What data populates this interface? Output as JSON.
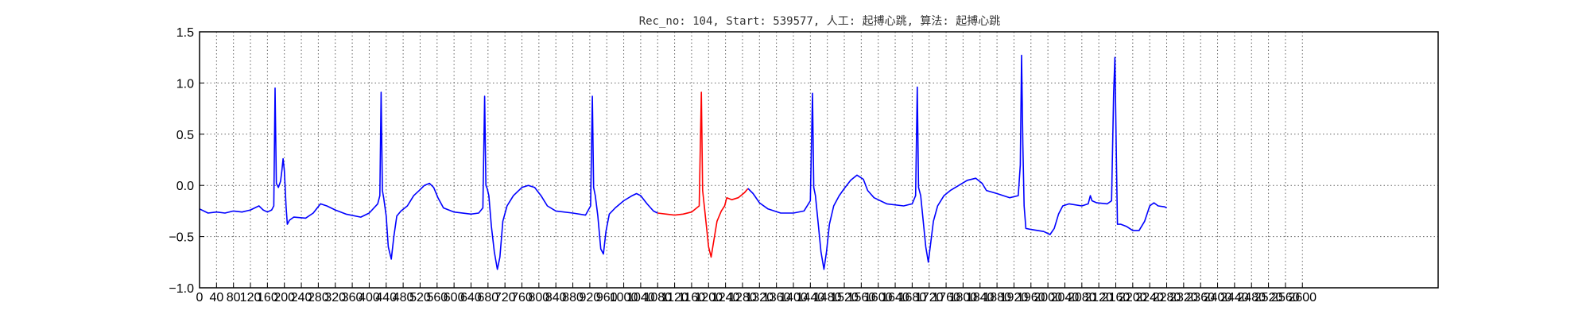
{
  "chart_data": {
    "type": "line",
    "title": "Rec_no: 104, Start: 539577, 人工: 起搏心跳, 算法: 起搏心跳",
    "xlabel": "",
    "ylabel": "",
    "xlim": [
      0,
      2920
    ],
    "ylim": [
      -1.0,
      1.5
    ],
    "yticks": [
      {
        "value": 1.5,
        "label": "1.5"
      },
      {
        "value": 1.0,
        "label": "1.0"
      },
      {
        "value": 0.5,
        "label": "0.5"
      },
      {
        "value": 0.0,
        "label": "0.0"
      },
      {
        "value": -0.5,
        "label": "−0.5"
      },
      {
        "value": -1.0,
        "label": "−1.0"
      }
    ],
    "xtick_step": 40,
    "xtick_max": 2600,
    "grid": true,
    "series": [
      {
        "color": "#0000ff",
        "points": [
          [
            0,
            -0.23
          ],
          [
            20,
            -0.27
          ],
          [
            40,
            -0.26
          ],
          [
            60,
            -0.27
          ],
          [
            80,
            -0.25
          ],
          [
            100,
            -0.26
          ],
          [
            120,
            -0.24
          ],
          [
            140,
            -0.2
          ],
          [
            150,
            -0.24
          ],
          [
            160,
            -0.26
          ],
          [
            170,
            -0.24
          ],
          [
            175,
            -0.2
          ],
          [
            178,
            0.95
          ],
          [
            181,
            0.02
          ],
          [
            186,
            -0.02
          ],
          [
            191,
            0.04
          ],
          [
            194,
            0.14
          ],
          [
            197,
            0.26
          ],
          [
            200,
            0.14
          ],
          [
            204,
            -0.2
          ],
          [
            207,
            -0.38
          ],
          [
            212,
            -0.34
          ],
          [
            222,
            -0.31
          ],
          [
            250,
            -0.32
          ],
          [
            268,
            -0.27
          ],
          [
            285,
            -0.18
          ],
          [
            300,
            -0.2
          ],
          [
            320,
            -0.24
          ],
          [
            345,
            -0.28
          ],
          [
            380,
            -0.31
          ],
          [
            400,
            -0.27
          ],
          [
            420,
            -0.18
          ],
          [
            425,
            -0.1
          ],
          [
            428,
            0.91
          ],
          [
            431,
            -0.05
          ],
          [
            434,
            -0.12
          ],
          [
            440,
            -0.3
          ],
          [
            445,
            -0.6
          ],
          [
            452,
            -0.72
          ],
          [
            458,
            -0.5
          ],
          [
            465,
            -0.3
          ],
          [
            475,
            -0.25
          ],
          [
            490,
            -0.2
          ],
          [
            505,
            -0.1
          ],
          [
            518,
            -0.05
          ],
          [
            530,
            0.0
          ],
          [
            542,
            0.02
          ],
          [
            552,
            -0.02
          ],
          [
            562,
            -0.12
          ],
          [
            575,
            -0.22
          ],
          [
            600,
            -0.26
          ],
          [
            640,
            -0.28
          ],
          [
            658,
            -0.27
          ],
          [
            668,
            -0.22
          ],
          [
            672,
            0.87
          ],
          [
            675,
            0.0
          ],
          [
            678,
            -0.03
          ],
          [
            682,
            -0.1
          ],
          [
            688,
            -0.4
          ],
          [
            695,
            -0.65
          ],
          [
            702,
            -0.82
          ],
          [
            708,
            -0.7
          ],
          [
            715,
            -0.35
          ],
          [
            725,
            -0.2
          ],
          [
            740,
            -0.1
          ],
          [
            760,
            -0.02
          ],
          [
            775,
            0.0
          ],
          [
            790,
            -0.02
          ],
          [
            805,
            -0.1
          ],
          [
            820,
            -0.2
          ],
          [
            840,
            -0.25
          ],
          [
            880,
            -0.27
          ],
          [
            910,
            -0.29
          ],
          [
            922,
            -0.2
          ],
          [
            926,
            0.87
          ],
          [
            929,
            -0.02
          ],
          [
            933,
            -0.1
          ],
          [
            939,
            -0.3
          ],
          [
            946,
            -0.62
          ],
          [
            952,
            -0.67
          ],
          [
            958,
            -0.45
          ],
          [
            966,
            -0.28
          ],
          [
            980,
            -0.22
          ],
          [
            1000,
            -0.15
          ],
          [
            1020,
            -0.1
          ],
          [
            1030,
            -0.08
          ],
          [
            1040,
            -0.1
          ],
          [
            1055,
            -0.18
          ],
          [
            1070,
            -0.25
          ],
          [
            1080,
            -0.27
          ]
        ]
      },
      {
        "color": "#ff0000",
        "points": [
          [
            1080,
            -0.27
          ],
          [
            1100,
            -0.28
          ],
          [
            1120,
            -0.29
          ],
          [
            1140,
            -0.28
          ],
          [
            1160,
            -0.26
          ],
          [
            1178,
            -0.2
          ],
          [
            1183,
            0.91
          ],
          [
            1186,
            -0.05
          ],
          [
            1190,
            -0.2
          ],
          [
            1195,
            -0.4
          ],
          [
            1200,
            -0.6
          ],
          [
            1206,
            -0.7
          ],
          [
            1210,
            -0.6
          ],
          [
            1220,
            -0.35
          ],
          [
            1230,
            -0.25
          ],
          [
            1238,
            -0.2
          ],
          [
            1243,
            -0.12
          ],
          [
            1255,
            -0.14
          ],
          [
            1270,
            -0.12
          ],
          [
            1285,
            -0.07
          ],
          [
            1293,
            -0.03
          ]
        ]
      },
      {
        "color": "#0000ff",
        "points": [
          [
            1293,
            -0.03
          ],
          [
            1305,
            -0.08
          ],
          [
            1320,
            -0.17
          ],
          [
            1340,
            -0.23
          ],
          [
            1370,
            -0.27
          ],
          [
            1400,
            -0.27
          ],
          [
            1425,
            -0.25
          ],
          [
            1440,
            -0.15
          ],
          [
            1445,
            0.9
          ],
          [
            1448,
            -0.02
          ],
          [
            1452,
            -0.1
          ],
          [
            1458,
            -0.35
          ],
          [
            1465,
            -0.65
          ],
          [
            1472,
            -0.82
          ],
          [
            1478,
            -0.65
          ],
          [
            1485,
            -0.38
          ],
          [
            1495,
            -0.2
          ],
          [
            1508,
            -0.1
          ],
          [
            1520,
            -0.03
          ],
          [
            1535,
            0.05
          ],
          [
            1550,
            0.1
          ],
          [
            1565,
            0.06
          ],
          [
            1575,
            -0.05
          ],
          [
            1590,
            -0.12
          ],
          [
            1620,
            -0.18
          ],
          [
            1660,
            -0.2
          ],
          [
            1680,
            -0.18
          ],
          [
            1688,
            -0.1
          ],
          [
            1692,
            0.96
          ],
          [
            1695,
            -0.02
          ],
          [
            1700,
            -0.1
          ],
          [
            1706,
            -0.35
          ],
          [
            1712,
            -0.6
          ],
          [
            1718,
            -0.75
          ],
          [
            1724,
            -0.55
          ],
          [
            1730,
            -0.35
          ],
          [
            1740,
            -0.2
          ],
          [
            1755,
            -0.1
          ],
          [
            1770,
            -0.05
          ],
          [
            1790,
            0.0
          ],
          [
            1810,
            0.05
          ],
          [
            1830,
            0.07
          ],
          [
            1845,
            0.02
          ],
          [
            1855,
            -0.05
          ],
          [
            1880,
            -0.08
          ],
          [
            1910,
            -0.12
          ],
          [
            1930,
            -0.1
          ],
          [
            1935,
            0.2
          ],
          [
            1938,
            1.27
          ],
          [
            1941,
            0.4
          ],
          [
            1944,
            -0.2
          ],
          [
            1948,
            -0.42
          ],
          [
            1960,
            -0.43
          ],
          [
            1990,
            -0.45
          ],
          [
            2005,
            -0.48
          ],
          [
            2015,
            -0.42
          ],
          [
            2025,
            -0.28
          ],
          [
            2035,
            -0.2
          ],
          [
            2050,
            -0.18
          ],
          [
            2080,
            -0.2
          ],
          [
            2095,
            -0.18
          ],
          [
            2100,
            -0.1
          ],
          [
            2104,
            -0.15
          ],
          [
            2115,
            -0.17
          ],
          [
            2140,
            -0.18
          ],
          [
            2150,
            -0.15
          ],
          [
            2155,
            0.9
          ],
          [
            2158,
            1.25
          ],
          [
            2161,
            0.4
          ],
          [
            2164,
            -0.38
          ],
          [
            2172,
            -0.38
          ],
          [
            2185,
            -0.4
          ],
          [
            2200,
            -0.44
          ],
          [
            2215,
            -0.44
          ],
          [
            2228,
            -0.35
          ],
          [
            2240,
            -0.2
          ],
          [
            2250,
            -0.17
          ],
          [
            2260,
            -0.2
          ],
          [
            2275,
            -0.21
          ],
          [
            2280,
            -0.22
          ]
        ]
      }
    ]
  }
}
